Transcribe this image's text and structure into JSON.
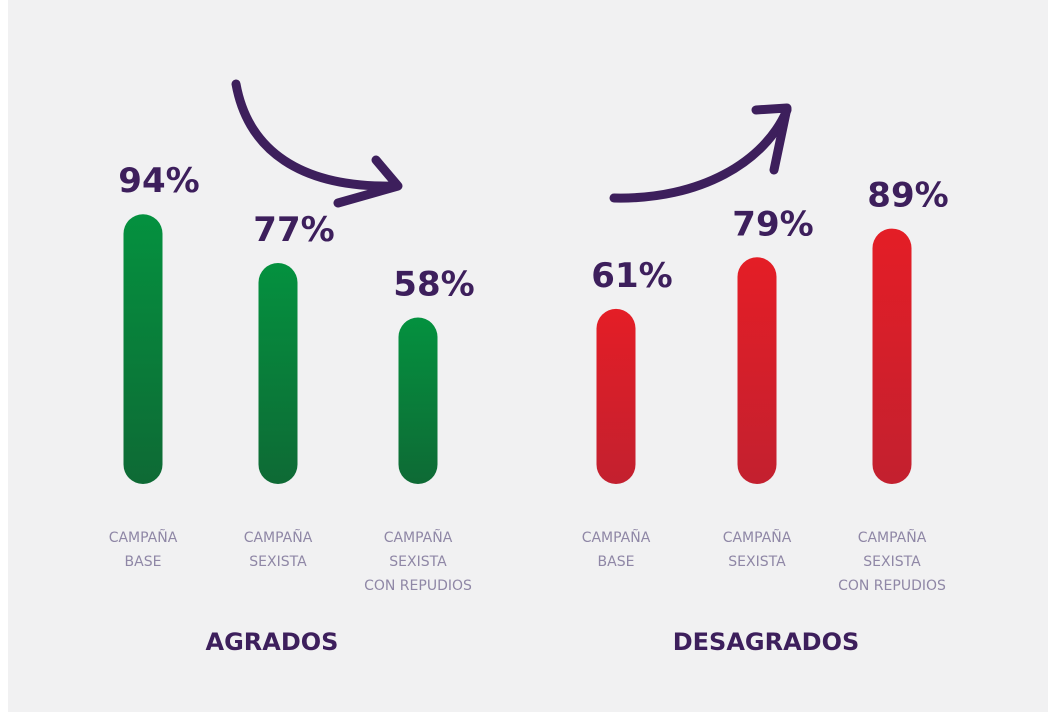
{
  "chart_data": {
    "type": "bar",
    "ylim": [
      0,
      100
    ],
    "groups": [
      {
        "title": "AGRADOS",
        "color_top": "#04913f",
        "color_bottom": "#0e6a35",
        "trend": "down",
        "bars": [
          {
            "value": 94,
            "label": "94%",
            "category": [
              "CAMPAÑA",
              "BASE"
            ]
          },
          {
            "value": 77,
            "label": "77%",
            "category": [
              "CAMPAÑA",
              "SEXISTA"
            ]
          },
          {
            "value": 58,
            "label": "58%",
            "category": [
              "CAMPAÑA",
              "SEXISTA",
              "CON REPUDIOS"
            ]
          }
        ]
      },
      {
        "title": "DESAGRADOS",
        "color_top": "#e41e26",
        "color_bottom": "#c3202f",
        "trend": "up",
        "bars": [
          {
            "value": 61,
            "label": "61%",
            "category": [
              "CAMPAÑA",
              "BASE"
            ]
          },
          {
            "value": 79,
            "label": "79%",
            "category": [
              "CAMPAÑA",
              "SEXISTA"
            ]
          },
          {
            "value": 89,
            "label": "89%",
            "category": [
              "CAMPAÑA",
              "SEXISTA",
              "CON REPUDIOS"
            ]
          }
        ]
      }
    ]
  },
  "colors": {
    "background": "#f1f1f2",
    "label": "#3d1f5c",
    "category_text": "#8f87a6",
    "arrow": "#3d1f5c"
  },
  "icons": {
    "left_arrow": "curved-arrow-down-right-icon",
    "right_arrow": "curved-arrow-up-right-icon"
  }
}
